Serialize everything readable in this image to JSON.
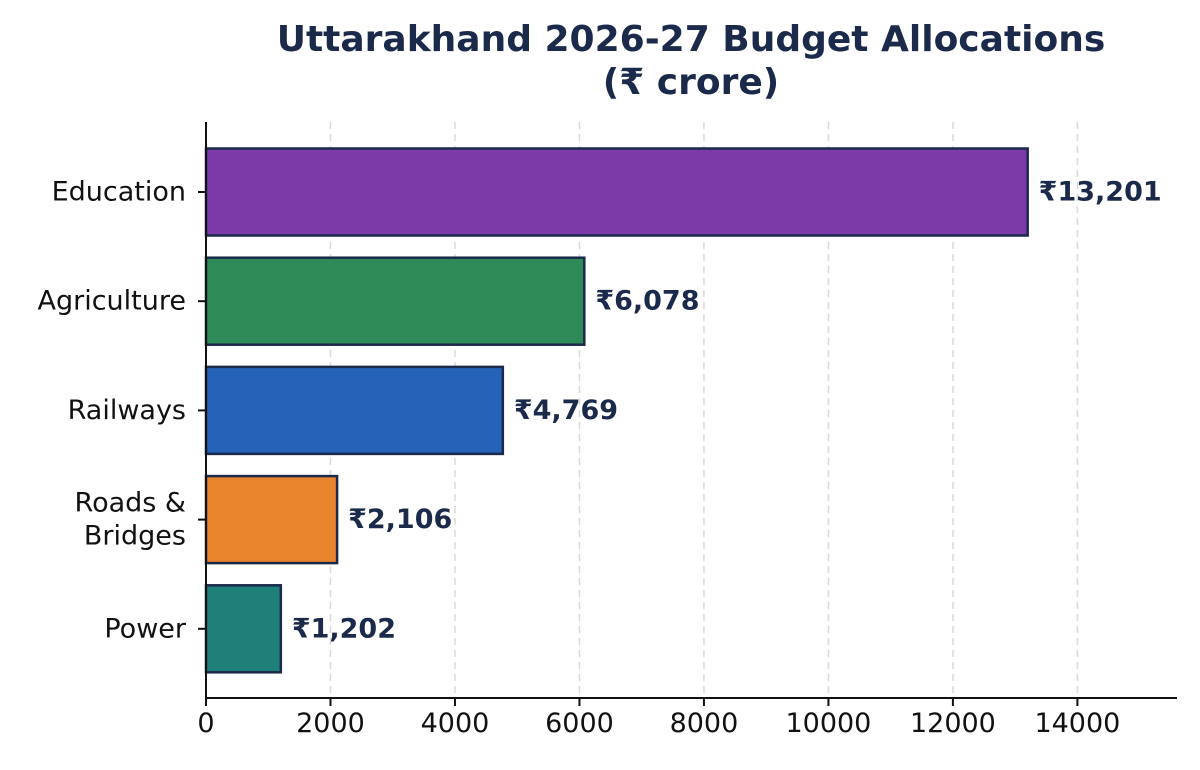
{
  "chart_data": {
    "type": "bar",
    "orientation": "horizontal",
    "title_line_1": "Uttarakhand 2026-27 Budget Allocations",
    "title_line_2": "(₹ crore)",
    "categories": [
      "Education",
      "Agriculture",
      "Railways",
      "Roads &\nBridges",
      "Power"
    ],
    "values": [
      13201,
      6078,
      4769,
      2106,
      1202
    ],
    "value_labels": [
      "₹13,201",
      "₹6,078",
      "₹4,769",
      "₹2,106",
      "₹1,202"
    ],
    "colors": [
      "#7b3aa8",
      "#2e8b57",
      "#2563b8",
      "#e8852d",
      "#1f7f79"
    ],
    "edge_color": "#1b2a4a",
    "xlim": [
      0,
      15600
    ],
    "xticks": [
      0,
      2000,
      4000,
      6000,
      8000,
      10000,
      12000,
      14000
    ],
    "xlabel": "",
    "ylabel": "",
    "grid": "x-dashed"
  }
}
